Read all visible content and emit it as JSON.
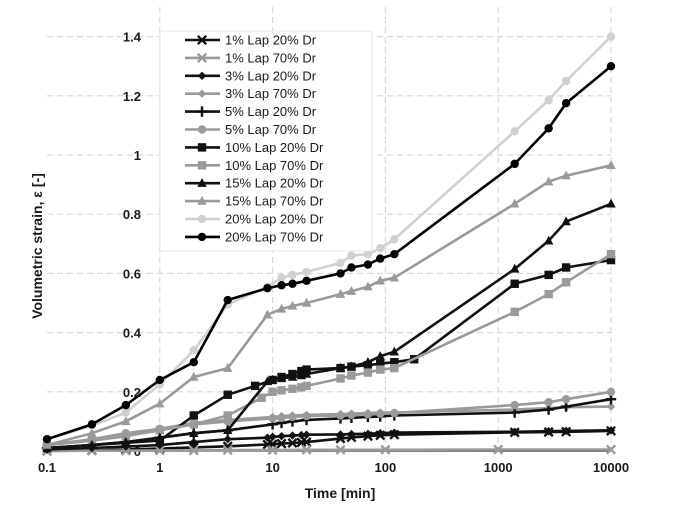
{
  "chart_data": {
    "type": "line",
    "x_scale": "log",
    "xlabel": "Time [min]",
    "ylabel": "Volumetric strain,  ε [-]",
    "xlim": [
      0.1,
      10000
    ],
    "ylim": [
      0,
      1.5
    ],
    "x_ticks": [
      {
        "value": 0.1,
        "label": "0.1"
      },
      {
        "value": 1,
        "label": "1"
      },
      {
        "value": 10,
        "label": "10"
      },
      {
        "value": 100,
        "label": "100"
      },
      {
        "value": 1000,
        "label": "1000"
      },
      {
        "value": 10000,
        "label": "10000"
      }
    ],
    "y_ticks": [
      {
        "value": 0,
        "label": "0"
      },
      {
        "value": 0.2,
        "label": "0.2"
      },
      {
        "value": 0.4,
        "label": "0.4"
      },
      {
        "value": 0.6,
        "label": "0.6"
      },
      {
        "value": 0.8,
        "label": "0.8"
      },
      {
        "value": 1,
        "label": "1"
      },
      {
        "value": 1.2,
        "label": "1.2"
      },
      {
        "value": 1.4,
        "label": "1.4"
      }
    ],
    "legend_position": "top-left",
    "series": [
      {
        "name": "1% Lap 20% Dr",
        "color": "#111111",
        "marker": "x",
        "x": [
          0.1,
          0.25,
          0.5,
          1,
          2,
          4,
          9,
          10,
          12,
          15,
          18,
          20,
          40,
          50,
          70,
          90,
          120,
          1400,
          2800,
          4000,
          10000
        ],
        "y": [
          0.0,
          0.002,
          0.005,
          0.008,
          0.012,
          0.016,
          0.022,
          0.023,
          0.025,
          0.027,
          0.029,
          0.03,
          0.042,
          0.046,
          0.05,
          0.053,
          0.055,
          0.063,
          0.064,
          0.065,
          0.068
        ]
      },
      {
        "name": "1% Lap 70% Dr",
        "color": "#9a9a9a",
        "marker": "x",
        "x": [
          0.1,
          0.25,
          0.5,
          1,
          2,
          4,
          10,
          20,
          40,
          100,
          1000,
          10000
        ],
        "y": [
          0.0,
          0.001,
          0.001,
          0.002,
          0.002,
          0.003,
          0.003,
          0.004,
          0.004,
          0.004,
          0.005,
          0.005
        ]
      },
      {
        "name": "3% Lap 20% Dr",
        "color": "#111111",
        "marker": "diamond",
        "x": [
          0.1,
          0.25,
          0.5,
          1,
          2,
          4,
          9,
          10,
          12,
          15,
          18,
          20,
          40,
          50,
          70,
          90,
          120,
          1400,
          2800,
          4000,
          10000
        ],
        "y": [
          0.005,
          0.01,
          0.015,
          0.02,
          0.03,
          0.04,
          0.045,
          0.048,
          0.05,
          0.052,
          0.054,
          0.055,
          0.056,
          0.057,
          0.058,
          0.06,
          0.062,
          0.065,
          0.067,
          0.068,
          0.07
        ]
      },
      {
        "name": "3% Lap 70% Dr",
        "color": "#9a9a9a",
        "marker": "diamond",
        "x": [
          0.1,
          0.25,
          0.5,
          1,
          2,
          4,
          10,
          12,
          15,
          20,
          40,
          50,
          70,
          90,
          120,
          1400,
          2800,
          4000,
          10000
        ],
        "y": [
          0.02,
          0.035,
          0.05,
          0.075,
          0.095,
          0.105,
          0.115,
          0.118,
          0.12,
          0.122,
          0.125,
          0.126,
          0.128,
          0.13,
          0.13,
          0.14,
          0.145,
          0.148,
          0.15
        ]
      },
      {
        "name": "5% Lap 20% Dr",
        "color": "#111111",
        "marker": "plus",
        "x": [
          0.1,
          0.25,
          0.5,
          1,
          2,
          4,
          10,
          12,
          15,
          20,
          40,
          50,
          70,
          90,
          120,
          1400,
          2800,
          4000,
          10000
        ],
        "y": [
          0.01,
          0.02,
          0.03,
          0.045,
          0.06,
          0.07,
          0.09,
          0.095,
          0.1,
          0.105,
          0.11,
          0.112,
          0.115,
          0.117,
          0.12,
          0.13,
          0.14,
          0.15,
          0.175
        ]
      },
      {
        "name": "5% Lap 70% Dr",
        "color": "#9a9a9a",
        "marker": "circle",
        "x": [
          0.1,
          0.25,
          0.5,
          1,
          2,
          4,
          10,
          12,
          15,
          20,
          40,
          50,
          70,
          90,
          120,
          1400,
          2800,
          4000,
          10000
        ],
        "y": [
          0.02,
          0.04,
          0.06,
          0.075,
          0.09,
          0.1,
          0.11,
          0.112,
          0.115,
          0.118,
          0.12,
          0.122,
          0.124,
          0.126,
          0.128,
          0.155,
          0.165,
          0.175,
          0.2
        ]
      },
      {
        "name": "10% Lap 20% Dr",
        "color": "#111111",
        "marker": "square",
        "x": [
          0.1,
          1,
          2,
          4,
          7,
          10,
          12,
          15,
          18,
          20,
          40,
          50,
          70,
          90,
          120,
          180,
          1400,
          2800,
          4000,
          10000
        ],
        "y": [
          0.01,
          0.035,
          0.12,
          0.19,
          0.22,
          0.24,
          0.25,
          0.26,
          0.27,
          0.275,
          0.28,
          0.285,
          0.29,
          0.295,
          0.3,
          0.31,
          0.565,
          0.595,
          0.62,
          0.645
        ]
      },
      {
        "name": "10% Lap 70% Dr",
        "color": "#9a9a9a",
        "marker": "square",
        "x": [
          0.1,
          0.25,
          0.5,
          1,
          2,
          4,
          8,
          10,
          12,
          15,
          18,
          20,
          40,
          50,
          70,
          90,
          120,
          1400,
          2800,
          4000,
          10000
        ],
        "y": [
          0.02,
          0.035,
          0.05,
          0.07,
          0.09,
          0.12,
          0.18,
          0.2,
          0.205,
          0.21,
          0.215,
          0.22,
          0.245,
          0.255,
          0.265,
          0.275,
          0.28,
          0.47,
          0.53,
          0.57,
          0.665
        ]
      },
      {
        "name": "15% Lap 20% Dr",
        "color": "#111111",
        "marker": "triangle",
        "x": [
          0.1,
          0.25,
          0.5,
          1,
          2,
          4,
          9,
          10,
          12,
          15,
          18,
          20,
          40,
          50,
          70,
          90,
          120,
          1400,
          2800,
          4000,
          10000
        ],
        "y": [
          0.01,
          0.02,
          0.03,
          0.045,
          0.06,
          0.07,
          0.235,
          0.24,
          0.245,
          0.25,
          0.255,
          0.26,
          0.28,
          0.285,
          0.3,
          0.32,
          0.335,
          0.615,
          0.71,
          0.775,
          0.835
        ]
      },
      {
        "name": "15% Lap 70% Dr",
        "color": "#9a9a9a",
        "marker": "triangle",
        "x": [
          0.1,
          0.25,
          0.5,
          1,
          2,
          4,
          9,
          12,
          15,
          20,
          40,
          50,
          70,
          90,
          120,
          1400,
          2800,
          4000,
          10000
        ],
        "y": [
          0.02,
          0.06,
          0.1,
          0.16,
          0.25,
          0.28,
          0.46,
          0.48,
          0.49,
          0.5,
          0.53,
          0.54,
          0.555,
          0.575,
          0.585,
          0.835,
          0.91,
          0.93,
          0.965
        ]
      },
      {
        "name": "20% Lap 20% Dr",
        "color": "#d0d0d0",
        "marker": "circle",
        "x": [
          0.1,
          0.25,
          0.5,
          1,
          2,
          4,
          9,
          12,
          15,
          20,
          40,
          50,
          70,
          90,
          120,
          1400,
          2800,
          4000,
          10000
        ],
        "y": [
          0.04,
          0.085,
          0.13,
          0.225,
          0.34,
          0.495,
          0.555,
          0.585,
          0.595,
          0.605,
          0.635,
          0.66,
          0.665,
          0.685,
          0.715,
          1.08,
          1.185,
          1.25,
          1.4
        ]
      },
      {
        "name": "20% Lap 70% Dr",
        "color": "#000000",
        "marker": "circle",
        "x": [
          0.1,
          0.25,
          0.5,
          1,
          2,
          4,
          9,
          12,
          15,
          20,
          40,
          50,
          70,
          90,
          120,
          1400,
          2800,
          4000,
          10000
        ],
        "y": [
          0.04,
          0.09,
          0.155,
          0.24,
          0.3,
          0.51,
          0.55,
          0.56,
          0.565,
          0.575,
          0.6,
          0.62,
          0.63,
          0.65,
          0.665,
          0.97,
          1.09,
          1.175,
          1.3
        ]
      }
    ]
  }
}
